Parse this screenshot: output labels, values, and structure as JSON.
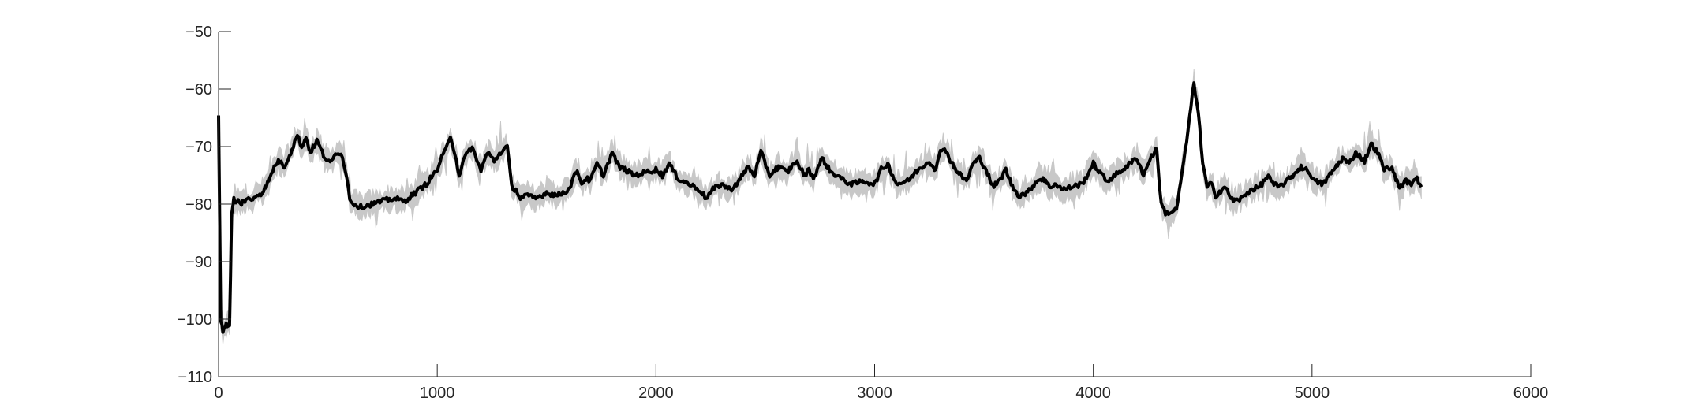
{
  "chart_data": {
    "type": "line",
    "title": "",
    "xlabel": "",
    "ylabel": "",
    "xlim": [
      0,
      6000
    ],
    "ylim": [
      -110,
      -50
    ],
    "xticks": [
      0,
      1000,
      2000,
      3000,
      4000,
      5000,
      6000
    ],
    "xtick_labels": [
      "0",
      "1000",
      "2000",
      "3000",
      "4000",
      "5000",
      "6000"
    ],
    "yticks": [
      -50,
      -60,
      -70,
      -80,
      -90,
      -100,
      -110
    ],
    "ytick_labels": [
      "−50",
      "−60",
      "−70",
      "−80",
      "−90",
      "−100",
      "−110"
    ],
    "grid": false,
    "legend": "none",
    "colors": {
      "line": "#000000",
      "band": "#c8c8c8",
      "axis": "#262626"
    },
    "series": [
      {
        "name": "",
        "role": "mean",
        "x": [
          0,
          10,
          20,
          35,
          50,
          55,
          60,
          70,
          80,
          90,
          100,
          115,
          130,
          150,
          170,
          200,
          230,
          260,
          280,
          300,
          330,
          360,
          380,
          400,
          420,
          450,
          480,
          510,
          540,
          560,
          580,
          600,
          620,
          650,
          700,
          750,
          800,
          850,
          900,
          950,
          1000,
          1020,
          1040,
          1060,
          1080,
          1100,
          1120,
          1140,
          1160,
          1180,
          1200,
          1230,
          1260,
          1290,
          1320,
          1340,
          1360,
          1380,
          1400,
          1450,
          1500,
          1550,
          1600,
          1640,
          1660,
          1680,
          1700,
          1730,
          1760,
          1780,
          1800,
          1830,
          1860,
          1900,
          1950,
          2000,
          2030,
          2060,
          2100,
          2150,
          2200,
          2230,
          2260,
          2300,
          2340,
          2380,
          2420,
          2450,
          2480,
          2520,
          2560,
          2600,
          2640,
          2680,
          2700,
          2720,
          2760,
          2800,
          2830,
          2860,
          2900,
          2950,
          3000,
          3030,
          3060,
          3100,
          3150,
          3200,
          3250,
          3280,
          3300,
          3320,
          3340,
          3380,
          3420,
          3450,
          3480,
          3510,
          3540,
          3570,
          3600,
          3630,
          3660,
          3700,
          3740,
          3770,
          3800,
          3830,
          3860,
          3900,
          3950,
          4000,
          4030,
          4060,
          4100,
          4150,
          4200,
          4230,
          4260,
          4290,
          4310,
          4330,
          4350,
          4380,
          4400,
          4420,
          4440,
          4460,
          4480,
          4500,
          4520,
          4540,
          4560,
          4600,
          4640,
          4680,
          4720,
          4760,
          4800,
          4820,
          4850,
          4900,
          4950,
          4990,
          5010,
          5050,
          5100,
          5140,
          5170,
          5200,
          5240,
          5270,
          5300,
          5330,
          5360,
          5400,
          5430,
          5460,
          5480,
          5500
        ],
        "y": [
          -65,
          -100,
          -102,
          -101,
          -101,
          -92,
          -82,
          -79,
          -80,
          -79.5,
          -80,
          -79.5,
          -79,
          -79.5,
          -78.5,
          -78,
          -76,
          -73,
          -72.5,
          -73.5,
          -71,
          -68,
          -70,
          -68.5,
          -71,
          -69,
          -71.5,
          -73,
          -71,
          -71,
          -74,
          -79,
          -80,
          -80.5,
          -80,
          -79.5,
          -79,
          -79.5,
          -78,
          -76.5,
          -74,
          -72,
          -70.5,
          -68,
          -71,
          -75,
          -72.5,
          -71,
          -70,
          -72.5,
          -74,
          -71,
          -72.5,
          -71,
          -70,
          -77,
          -77.5,
          -79,
          -78.5,
          -79,
          -78,
          -78.5,
          -77.5,
          -74,
          -76.5,
          -75.5,
          -76,
          -73,
          -75,
          -73,
          -71,
          -73.5,
          -74,
          -75,
          -74.5,
          -74,
          -75,
          -73,
          -75.5,
          -76.5,
          -77.5,
          -79,
          -77.5,
          -76.5,
          -77.5,
          -76,
          -73.5,
          -75,
          -71,
          -75,
          -73.5,
          -74.5,
          -72.5,
          -75,
          -74,
          -75.5,
          -72,
          -74.5,
          -75,
          -76,
          -76.5,
          -76,
          -76.5,
          -74,
          -73,
          -76.5,
          -76,
          -74,
          -72.5,
          -74,
          -71,
          -70,
          -72,
          -74.5,
          -76,
          -73,
          -72,
          -74,
          -77,
          -76,
          -74,
          -77,
          -78.5,
          -78,
          -76,
          -75.5,
          -77,
          -76.5,
          -77.5,
          -77,
          -76.5,
          -73,
          -74.5,
          -76,
          -75,
          -73.5,
          -72,
          -75,
          -72,
          -70.5,
          -80,
          -81.5,
          -81.5,
          -81,
          -76,
          -71,
          -65,
          -59,
          -64,
          -73,
          -77,
          -76.5,
          -78.5,
          -77,
          -79.5,
          -79,
          -77.5,
          -77,
          -75,
          -76.5,
          -77,
          -75.5,
          -73.5,
          -74.5,
          -76,
          -76.5,
          -74,
          -72,
          -73,
          -71,
          -72.5,
          -69.5,
          -71,
          -74,
          -73.5,
          -77,
          -76,
          -76.5,
          -75.5,
          -77
        ]
      }
    ]
  }
}
